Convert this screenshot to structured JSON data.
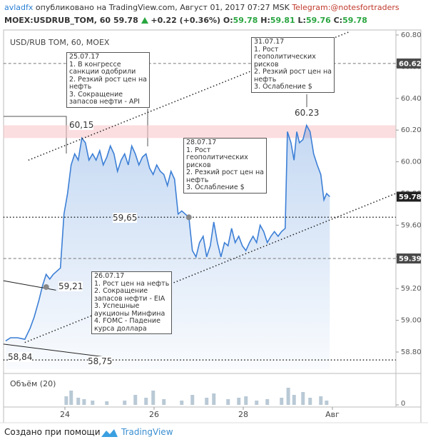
{
  "header": {
    "author": "avladfx",
    "published": "опубликовано на TradingView.com, Август 01, 2017 07:27 MSK",
    "telegram": "Telegram:@notesfortraders",
    "symbol": "MOEX:USDRUB_TOM, 60",
    "last": "59.78",
    "change": "+0.22 (+0.36%)",
    "o_label": "O:",
    "o": "59.78",
    "h_label": "H:",
    "h": "59.81",
    "l_label": "L:",
    "l": "59.76",
    "c_label": "C:",
    "c": "59.78"
  },
  "chart_data": {
    "type": "area",
    "title": "USD/RUB TOM, 60, MOEX",
    "color": "#3c7fd6",
    "x": [
      22.67,
      22.78,
      22.94,
      23.1,
      23.22,
      23.31,
      23.42,
      23.5,
      23.58,
      23.66,
      23.74,
      23.9,
      23.98,
      24.06,
      24.14,
      24.22,
      24.3,
      24.38,
      24.46,
      24.54,
      24.62,
      24.7,
      24.78,
      24.86,
      24.94,
      25.02,
      25.1,
      25.18,
      25.26,
      25.34,
      25.42,
      25.5,
      25.58,
      25.66,
      25.74,
      25.82,
      25.9,
      25.98,
      26.06,
      26.14,
      26.22,
      26.3,
      26.38,
      26.46,
      26.54,
      26.62,
      26.7,
      26.78,
      26.86,
      26.94,
      27.02,
      27.1,
      27.18,
      27.26,
      27.34,
      27.42,
      27.5,
      27.58,
      27.66,
      27.74,
      27.82,
      27.9,
      27.98,
      28.06,
      28.14,
      28.22,
      28.3,
      28.38,
      28.46,
      28.54,
      28.62,
      28.7,
      28.78,
      28.86,
      28.94,
      28.99,
      29.07,
      29.14,
      29.2,
      29.26,
      29.34,
      29.42,
      29.5,
      29.58,
      29.66,
      29.74,
      29.81,
      29.87,
      29.94
    ],
    "values": [
      58.87,
      58.89,
      58.89,
      58.88,
      58.95,
      59.02,
      59.13,
      59.22,
      59.29,
      59.26,
      59.29,
      59.33,
      59.67,
      59.8,
      59.98,
      60.05,
      60.01,
      60.15,
      60.12,
      60.01,
      60.05,
      60.01,
      60.07,
      59.98,
      60.03,
      60.1,
      60.05,
      59.94,
      60.01,
      60.05,
      59.98,
      60.1,
      60.05,
      59.98,
      60.03,
      60.05,
      59.96,
      59.92,
      59.98,
      59.94,
      59.92,
      59.85,
      59.94,
      59.89,
      59.67,
      59.69,
      59.67,
      59.65,
      59.44,
      59.4,
      59.49,
      59.53,
      59.4,
      59.47,
      59.62,
      59.49,
      59.4,
      59.49,
      59.47,
      59.58,
      59.49,
      59.53,
      59.47,
      59.44,
      59.49,
      59.53,
      59.49,
      59.6,
      59.56,
      59.49,
      59.53,
      59.56,
      59.53,
      59.56,
      59.58,
      60.19,
      60.12,
      60.01,
      60.19,
      60.12,
      60.14,
      60.23,
      60.19,
      60.05,
      59.98,
      59.92,
      59.76,
      59.8,
      59.78
    ],
    "xlim": [
      22.62,
      31.42
    ],
    "xticks": [
      24,
      26,
      28,
      {
        "value": 30,
        "label": "Авг"
      }
    ],
    "ylim": [
      58.69,
      60.83
    ],
    "yticks": [
      {
        "value": 58.8,
        "label": "58.80"
      },
      {
        "value": 59.0,
        "label": "59.00"
      },
      {
        "value": 59.2,
        "label": "59.20"
      },
      {
        "value": 59.4,
        "label": "59.40"
      },
      {
        "value": 59.6,
        "label": "59.60"
      },
      {
        "value": 59.8,
        "label": "59.80"
      },
      {
        "value": 60.0,
        "label": "60.00"
      },
      {
        "value": 60.2,
        "label": "60.20"
      },
      {
        "value": 60.4,
        "label": "60.40"
      },
      {
        "value": 60.6,
        "label": "60.60"
      },
      {
        "value": 60.8,
        "label": "60.80"
      }
    ],
    "grid": false,
    "levels": [
      {
        "value": 60.62,
        "style": "dashed"
      },
      {
        "value": 59.39,
        "style": "dashed"
      },
      {
        "value": 59.65,
        "style": "dotted"
      },
      {
        "value": 58.75,
        "style": "dotted"
      }
    ],
    "price_labels": [
      60.62,
      59.78,
      59.39
    ],
    "zone": [
      60.15,
      60.23
    ],
    "markers": [
      {
        "x": 26.78,
        "value": 59.65
      },
      {
        "x": 23.58,
        "value": 59.21
      }
    ],
    "trendlines": [
      {
        "x": [
          23.18,
          30.38
        ],
        "values": [
          60.01,
          60.82
        ]
      },
      {
        "x": [
          23.1,
          31.42
        ],
        "values": [
          58.86,
          59.8
        ]
      },
      {
        "x": [
          22.62,
          23.8
        ],
        "values": [
          59.25,
          59.19
        ]
      },
      {
        "x": [
          22.62,
          24.86
        ],
        "values": [
          58.85,
          58.77
        ]
      }
    ],
    "annotations": [
      {
        "lines": [
          "25.07.17",
          "1. В конгрессе",
          "санкции одобрили",
          "2. Резкий рост цен на",
          "нефть",
          "3. Сокращение",
          "запасов нефти - API"
        ]
      },
      {
        "lines": [
          "28.07.17",
          "1. Рост",
          "геополитических",
          "рисков",
          "2. Резкий рост цен на",
          "нефть",
          "3. Ослабление $"
        ]
      },
      {
        "lines": [
          "31.07.17",
          "1. Рост",
          "геополитических",
          "рисков",
          "2. Резкий рост цен на",
          "нефть",
          "3. Ослабление $"
        ]
      },
      {
        "lines": [
          "26.07.17",
          "1. Рост цен на нефть",
          "2. Сокращение",
          "запасов нефти  - EIA",
          "3. Успешные",
          "аукционы Минфина",
          "4. FOMC - Падение",
          "курса доллара"
        ]
      }
    ],
    "price_notes": [
      "60,15",
      "59,65",
      "59,21",
      "58,84",
      "58,75",
      "60.23"
    ],
    "volume": {
      "title": "Объём (20)",
      "color": "#b9c9d6",
      "x": [
        24.03,
        24.14,
        24.3,
        24.43,
        24.62,
        24.94,
        25.34,
        25.58,
        25.82,
        25.98,
        26.22,
        26.62,
        26.86,
        27.18,
        27.34,
        27.66,
        27.9,
        28.06,
        28.3,
        28.54,
        28.86,
        29.01,
        29.14,
        29.34,
        29.5,
        29.74,
        29.87
      ],
      "values": [
        12,
        20,
        10,
        8,
        6,
        5,
        6,
        14,
        10,
        20,
        8,
        6,
        14,
        10,
        16,
        8,
        10,
        12,
        6,
        8,
        10,
        24,
        14,
        18,
        10,
        12,
        6
      ],
      "ylim": [
        0,
        27
      ],
      "yticks": [
        0
      ]
    }
  },
  "footer": {
    "made_with": "Создано при помощи",
    "brand": "TradingView"
  }
}
